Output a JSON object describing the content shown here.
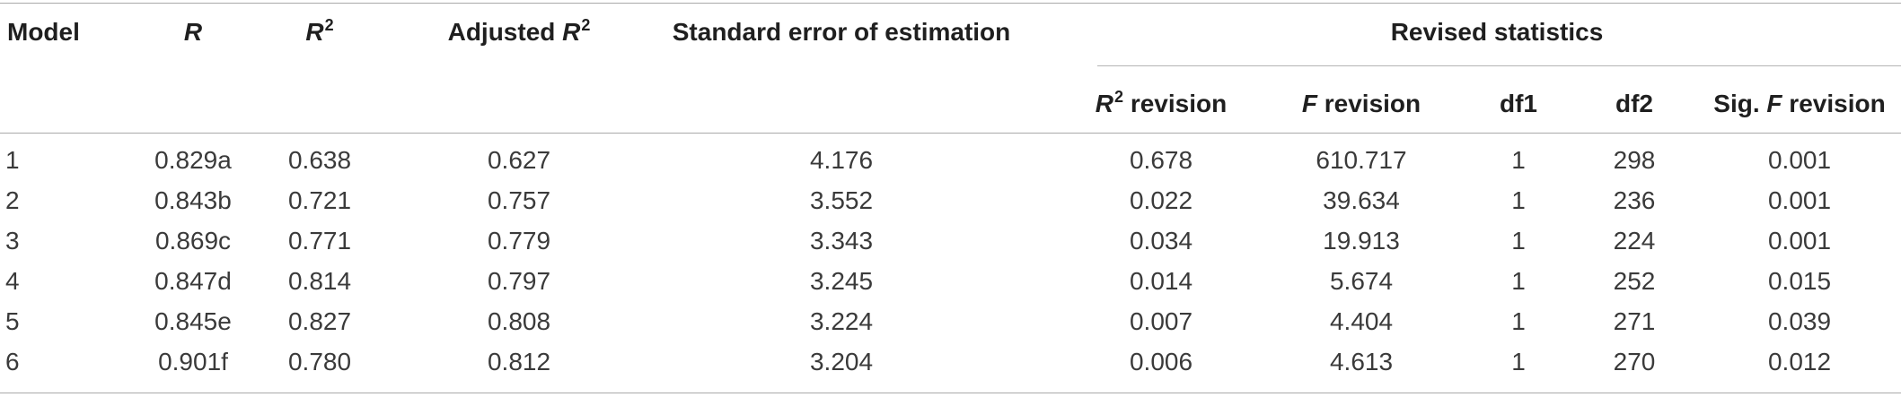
{
  "table": {
    "headers": {
      "model": "Model",
      "r": "R",
      "r2_base": "R",
      "r2_sup": "2",
      "adj_prefix": "Adjusted ",
      "adj_base": "R",
      "adj_sup": "2",
      "std_error": "Standard error of estimation",
      "revised_group": "Revised statistics",
      "r2_rev_base": "R",
      "r2_rev_sup": "2",
      "r2_rev_suffix": " revision",
      "f_rev_base": "F",
      "f_rev_suffix": " revision",
      "df1": "df1",
      "df2": "df2",
      "sig_prefix": "Sig. ",
      "sig_base": "F",
      "sig_suffix": " revision"
    },
    "rows": [
      {
        "model": "1",
        "r": "0.829a",
        "r2": "0.638",
        "adj_r2": "0.627",
        "std_error": "4.176",
        "r2_revision": "0.678",
        "f_revision": "610.717",
        "df1": "1",
        "df2": "298",
        "sig_f_revision": "0.001"
      },
      {
        "model": "2",
        "r": "0.843b",
        "r2": "0.721",
        "adj_r2": "0.757",
        "std_error": "3.552",
        "r2_revision": "0.022",
        "f_revision": "39.634",
        "df1": "1",
        "df2": "236",
        "sig_f_revision": "0.001"
      },
      {
        "model": "3",
        "r": "0.869c",
        "r2": "0.771",
        "adj_r2": "0.779",
        "std_error": "3.343",
        "r2_revision": "0.034",
        "f_revision": "19.913",
        "df1": "1",
        "df2": "224",
        "sig_f_revision": "0.001"
      },
      {
        "model": "4",
        "r": "0.847d",
        "r2": "0.814",
        "adj_r2": "0.797",
        "std_error": "3.245",
        "r2_revision": "0.014",
        "f_revision": "5.674",
        "df1": "1",
        "df2": "252",
        "sig_f_revision": "0.015"
      },
      {
        "model": "5",
        "r": "0.845e",
        "r2": "0.827",
        "adj_r2": "0.808",
        "std_error": "3.224",
        "r2_revision": "0.007",
        "f_revision": "4.404",
        "df1": "1",
        "df2": "271",
        "sig_f_revision": "0.039"
      },
      {
        "model": "6",
        "r": "0.901f",
        "r2": "0.780",
        "adj_r2": "0.812",
        "std_error": "3.204",
        "r2_revision": "0.006",
        "f_revision": "4.613",
        "df1": "1",
        "df2": "270",
        "sig_f_revision": "0.012"
      }
    ]
  }
}
